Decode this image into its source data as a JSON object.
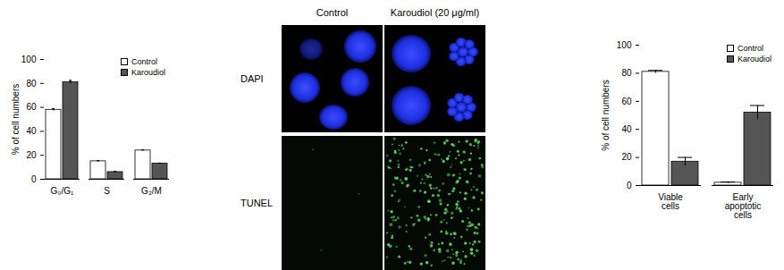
{
  "chart_data": [
    {
      "type": "bar",
      "y_label": "% of cell numbers",
      "categories": [
        "G₀/G₁",
        "S",
        "G₂/M"
      ],
      "series": [
        {
          "name": "Control",
          "color": "#ffffff",
          "values": [
            58,
            15,
            24
          ],
          "errors": [
            1,
            0.5,
            0.5
          ]
        },
        {
          "name": "Karoudiol",
          "color": "#555555",
          "values": [
            81,
            6,
            13
          ],
          "errors": [
            1.5,
            0.5,
            0.5
          ]
        }
      ],
      "ylim": [
        0,
        100
      ],
      "yticks": [
        0,
        20,
        40,
        60,
        80,
        100
      ],
      "legend": "top-right"
    },
    {
      "type": "bar",
      "y_label": "% of cell numbers",
      "categories": [
        "Viable cells",
        "Early apoptotic cells"
      ],
      "series": [
        {
          "name": "Control",
          "color": "#ffffff",
          "values": [
            81,
            2
          ],
          "errors": [
            1,
            0.5
          ]
        },
        {
          "name": "Karoudiol",
          "color": "#555555",
          "values": [
            17,
            52
          ],
          "errors": [
            3,
            5
          ]
        }
      ],
      "ylim": [
        0,
        100
      ],
      "yticks": [
        0,
        20,
        40,
        60,
        80,
        100
      ],
      "legend": "top-right"
    }
  ],
  "image_panel": {
    "columns": [
      "Control",
      "Karoudiol (20 μg/ml)"
    ],
    "rows": [
      "DAPI",
      "TUNEL"
    ]
  }
}
